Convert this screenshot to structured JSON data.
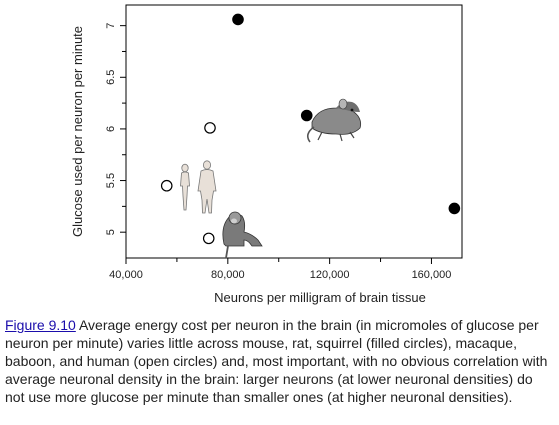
{
  "chart_data": {
    "type": "scatter",
    "title": "",
    "xlabel": "Neurons per milligram of brain tissue",
    "ylabel": "Glucose used per neuron per minute",
    "xlim": [
      40000,
      172000
    ],
    "ylim": [
      4.75,
      7.2
    ],
    "x_ticks": [
      40000,
      80000,
      120000,
      160000
    ],
    "x_tick_labels": [
      "40,000",
      "80,000",
      "120,000",
      "160,000"
    ],
    "y_ticks": [
      5,
      5.5,
      6,
      6.5,
      7
    ],
    "y_tick_labels": [
      "5",
      "5.5",
      "6",
      "6.5",
      "7"
    ],
    "grid": false,
    "series": [
      {
        "marker": "filled-circle",
        "color": "#000000",
        "points": [
          {
            "x": 84000,
            "y": 7.06
          },
          {
            "x": 111000,
            "y": 6.13
          },
          {
            "x": 169000,
            "y": 5.23
          }
        ]
      },
      {
        "marker": "open-circle",
        "color": "#000000",
        "points": [
          {
            "x": 56000,
            "y": 5.45
          },
          {
            "x": 73000,
            "y": 6.01
          },
          {
            "x": 72500,
            "y": 4.94
          }
        ]
      }
    ],
    "illustrations": [
      "human-figures",
      "rat-illustration",
      "monkey-illustration"
    ]
  },
  "caption": {
    "figure_label": "Figure 9.10",
    "text": " Average energy cost per neuron in the brain (in micromoles of glucose per neuron per minute) varies little across mouse, rat, squirrel (filled circles), macaque, baboon, and human (open circles) and, most important, with no obvious correlation with average neuronal density in the brain: larger neurons (at lower neuronal densities) do not use more glucose per minute than smaller ones (at higher neuronal densities)."
  }
}
